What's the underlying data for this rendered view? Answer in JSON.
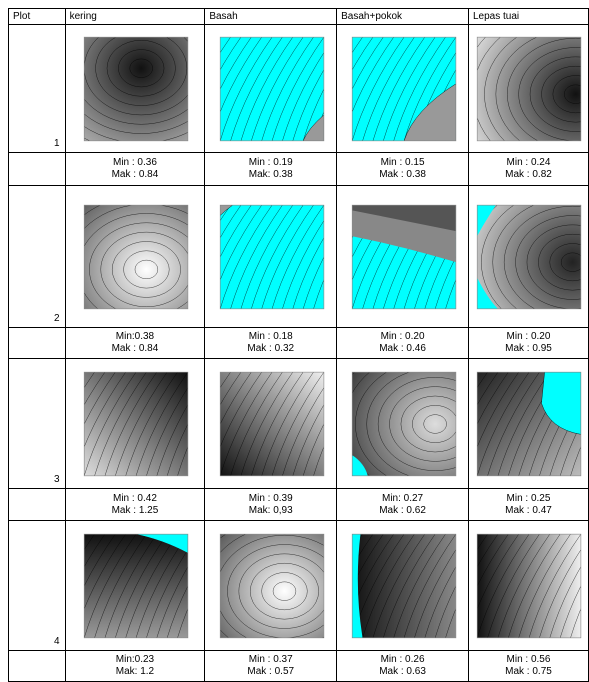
{
  "table": {
    "header": [
      "Plot",
      "kering",
      "Basah",
      "Basah+pokok",
      "Lepas tuai"
    ],
    "rows": [
      {
        "plot": "1",
        "cells": [
          [
            "Min : 0.36",
            "Mak : 0.84"
          ],
          [
            "Min : 0.19",
            "Mak: 0.38"
          ],
          [
            "Min : 0.15",
            "Mak : 0.38"
          ],
          [
            "Min : 0.24",
            "Mak : 0.82"
          ]
        ]
      },
      {
        "plot": "2",
        "cells": [
          [
            "Min:0.38",
            "Mak : 0.84"
          ],
          [
            "Min : 0.18",
            "Mak : 0.32"
          ],
          [
            "Min : 0.20",
            "Mak : 0.46"
          ],
          [
            "Min : 0.20",
            "Mak : 0.95"
          ]
        ]
      },
      {
        "plot": "3",
        "cells": [
          [
            "Min : 0.42",
            "Mak : 1.25"
          ],
          [
            "Min : 0.39",
            "Mak: 0,93"
          ],
          [
            "Min: 0.27",
            "Mak : 0.62"
          ],
          [
            "Min : 0.25",
            "Mak : 0.47"
          ]
        ]
      },
      {
        "plot": "4",
        "cells": [
          [
            "Min:0.23",
            "Mak: 1.2"
          ],
          [
            "Min : 0.37",
            "Mak : 0.57"
          ],
          [
            "Min : 0.26",
            "Mak : 0.63"
          ],
          [
            "Min : 0.56",
            "Mak : 0.75"
          ]
        ]
      }
    ]
  }
}
